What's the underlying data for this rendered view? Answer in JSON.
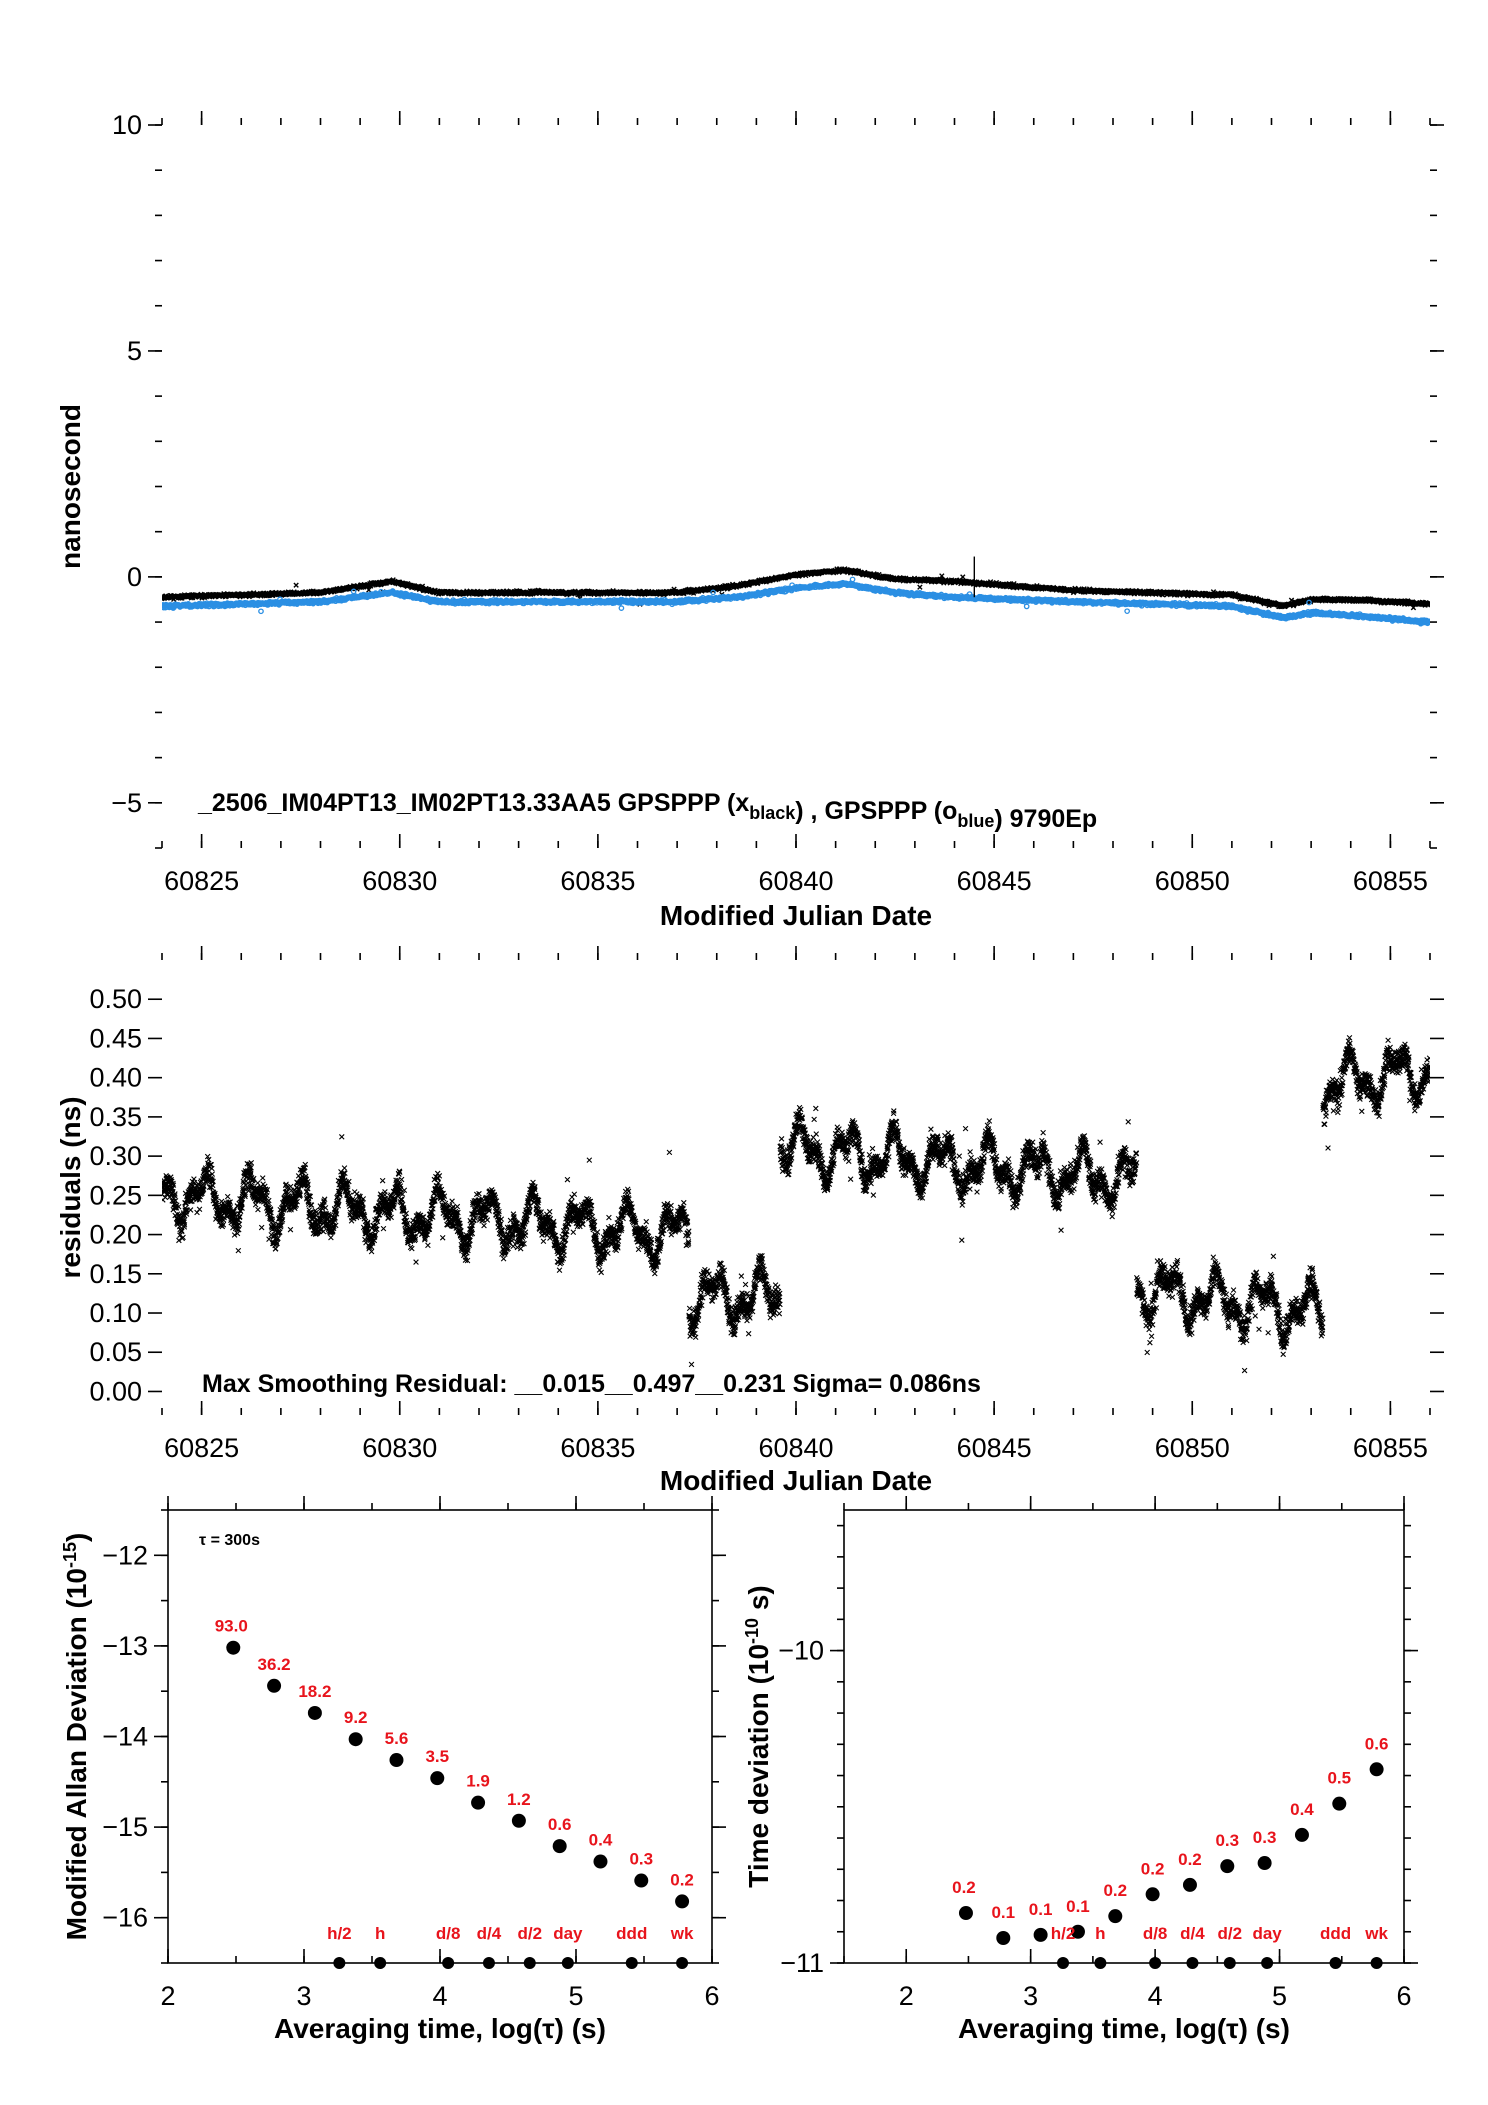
{
  "colors": {
    "black": "#000000",
    "blue": "#2b8fe3",
    "red": "#e8141c"
  },
  "chart_data": [
    {
      "type": "scatter",
      "ylabel": "nanosecond",
      "xlabel": "Modified Julian Date",
      "xlim": [
        60824,
        60856
      ],
      "ylim": [
        -6,
        10
      ],
      "xticks": [
        "60825",
        "60830",
        "60835",
        "60840",
        "60845",
        "60850",
        "60855"
      ],
      "yticks": [
        "10",
        "5",
        "0",
        "−5"
      ],
      "annotation": {
        "id": "_2506_IM04PT13_IM02PT13.33AA5",
        "gps1": "GPSPPP (x",
        "sub1": "black",
        "sep": ") ,  GPSPPP (o",
        "sub2": "blue",
        "tail": ")  9790Ep"
      },
      "series": [
        {
          "marker": "x",
          "color": "black",
          "x": [
            60824,
            60826,
            60828,
            60829.8,
            60831,
            60833,
            60835,
            60837,
            60838.5,
            60840,
            60841.2,
            60842.5,
            60844,
            60845.5,
            60847,
            60849,
            60851,
            60852.3,
            60853,
            60854,
            60856
          ],
          "y": [
            -0.45,
            -0.4,
            -0.35,
            -0.1,
            -0.35,
            -0.35,
            -0.35,
            -0.35,
            -0.2,
            0.05,
            0.15,
            -0.05,
            -0.1,
            -0.2,
            -0.3,
            -0.35,
            -0.4,
            -0.65,
            -0.5,
            -0.5,
            -0.6
          ]
        },
        {
          "marker": "o",
          "color": "blue",
          "x": [
            60824,
            60826,
            60828,
            60829.8,
            60831,
            60833,
            60835,
            60837,
            60838.5,
            60840,
            60841.2,
            60842.5,
            60844,
            60845.5,
            60847,
            60849,
            60851,
            60852.3,
            60853,
            60854,
            60856
          ],
          "y": [
            -0.65,
            -0.6,
            -0.55,
            -0.35,
            -0.55,
            -0.55,
            -0.55,
            -0.55,
            -0.45,
            -0.25,
            -0.15,
            -0.35,
            -0.45,
            -0.5,
            -0.55,
            -0.6,
            -0.65,
            -0.9,
            -0.8,
            -0.85,
            -1.0
          ]
        }
      ]
    },
    {
      "type": "scatter",
      "ylabel": "residuals (ns)",
      "xlabel": "Modified Julian Date",
      "xlim": [
        60824,
        60856
      ],
      "ylim": [
        -0.03,
        0.55
      ],
      "xticks": [
        "60825",
        "60830",
        "60835",
        "60840",
        "60845",
        "60850",
        "60855"
      ],
      "yticks": [
        "0.50",
        "0.45",
        "0.40",
        "0.35",
        "0.30",
        "0.25",
        "0.20",
        "0.15",
        "0.10",
        "0.05",
        "0.00"
      ],
      "annotation": "Max Smoothing Residual: __0.015__0.497__0.231  Sigma= 0.086ns",
      "segments": [
        {
          "x": [
            60824,
            60837.3
          ],
          "start": 0.25,
          "end": 0.2
        },
        {
          "x": [
            60837.3,
            60839.6
          ],
          "start": 0.12,
          "end": 0.12
        },
        {
          "x": [
            60839.6,
            60848.6
          ],
          "start": 0.31,
          "end": 0.27
        },
        {
          "x": [
            60848.6,
            60853.3
          ],
          "start": 0.13,
          "end": 0.1
        },
        {
          "x": [
            60853.3,
            60856
          ],
          "start": 0.39,
          "end": 0.41
        }
      ]
    },
    {
      "type": "scatter",
      "ylabel": "Modified Allan Deviation (10",
      "ylabel_sup": "-15",
      "ylabel_tail": ")",
      "xlabel": "Averaging time, log(τ) (s)",
      "xlim": [
        2,
        6
      ],
      "ylim": [
        -16.5,
        -11.5
      ],
      "xticks": [
        "2",
        "3",
        "4",
        "5",
        "6"
      ],
      "yticks": [
        "−12",
        "−13",
        "−14",
        "−15",
        "−16"
      ],
      "tau_note": "τ = 300s",
      "x": [
        2.48,
        2.78,
        3.08,
        3.38,
        3.68,
        3.98,
        4.28,
        4.58,
        4.88,
        5.18,
        5.48,
        5.78
      ],
      "y": [
        -13.02,
        -13.44,
        -13.74,
        -14.03,
        -14.26,
        -14.46,
        -14.73,
        -14.93,
        -15.21,
        -15.38,
        -15.59,
        -15.82
      ],
      "labels": [
        "93.0",
        "36.2",
        "18.2",
        "9.2",
        "5.6",
        "3.5",
        "1.9",
        "1.2",
        "0.6",
        "0.4",
        "0.3",
        "0.2"
      ],
      "markers": [
        {
          "x": 3.26,
          "text": "h/2"
        },
        {
          "x": 3.56,
          "text": "h"
        },
        {
          "x": 4.06,
          "text": "d/8"
        },
        {
          "x": 4.36,
          "text": "d/4"
        },
        {
          "x": 4.66,
          "text": "d/2"
        },
        {
          "x": 4.94,
          "text": "day"
        },
        {
          "x": 5.41,
          "text": "ddd"
        },
        {
          "x": 5.78,
          "text": "wk"
        }
      ]
    },
    {
      "type": "scatter",
      "ylabel": "Time deviation (10",
      "ylabel_sup": "-10",
      "ylabel_tail": " s)",
      "xlabel": "Averaging time, log(τ) (s)",
      "xlim": [
        1.5,
        6
      ],
      "ylim": [
        -11,
        -9.55
      ],
      "xticks": [
        "2",
        "3",
        "4",
        "5",
        "6"
      ],
      "yticks": [
        "−10",
        "−11"
      ],
      "x": [
        2.48,
        2.78,
        3.08,
        3.38,
        3.68,
        3.98,
        4.28,
        4.58,
        4.88,
        5.18,
        5.48,
        5.78
      ],
      "y": [
        -10.84,
        -10.92,
        -10.91,
        -10.9,
        -10.85,
        -10.78,
        -10.75,
        -10.69,
        -10.68,
        -10.59,
        -10.49,
        -10.38
      ],
      "labels": [
        "0.2",
        "0.1",
        "0.1",
        "0.1",
        "0.2",
        "0.2",
        "0.2",
        "0.3",
        "0.3",
        "0.4",
        "0.5",
        "0.6"
      ],
      "markers": [
        {
          "x": 3.26,
          "text": "h/2"
        },
        {
          "x": 3.56,
          "text": "h"
        },
        {
          "x": 4.0,
          "text": "d/8"
        },
        {
          "x": 4.3,
          "text": "d/4"
        },
        {
          "x": 4.6,
          "text": "d/2"
        },
        {
          "x": 4.9,
          "text": "day"
        },
        {
          "x": 5.45,
          "text": "ddd"
        },
        {
          "x": 5.78,
          "text": "wk"
        }
      ]
    }
  ]
}
